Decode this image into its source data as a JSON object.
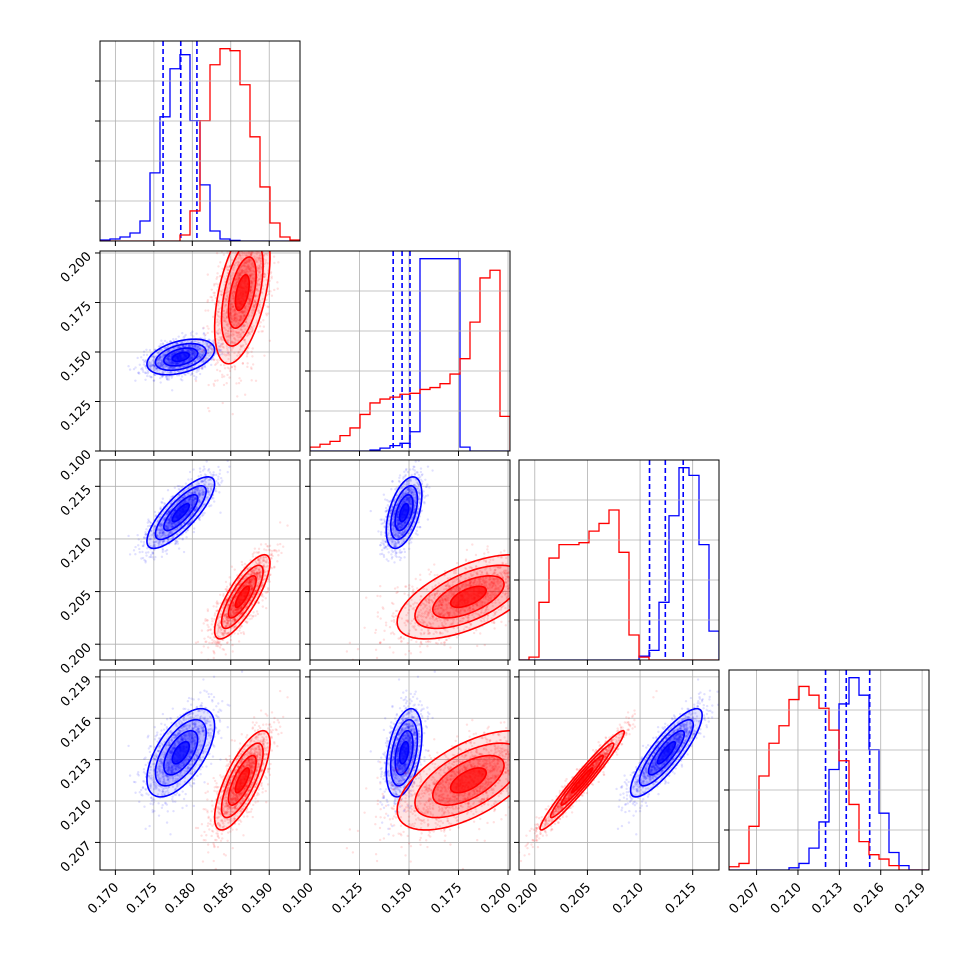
{
  "chart_data": {
    "type": "corner",
    "grid": true,
    "colors": {
      "blue": "#0000ff",
      "red": "#ff0000"
    },
    "params": [
      {
        "index": 0,
        "lim": [
          0.168,
          0.194
        ],
        "ticks": [
          0.17,
          0.175,
          0.18,
          0.185,
          0.19
        ],
        "tick_labels": [
          "0.170",
          "0.175",
          "0.180",
          "0.185",
          "0.190"
        ]
      },
      {
        "index": 1,
        "lim": [
          0.1,
          0.201
        ],
        "ticks": [
          0.1,
          0.125,
          0.15,
          0.175,
          0.2
        ],
        "tick_labels": [
          "0.100",
          "0.125",
          "0.150",
          "0.175",
          "0.200"
        ]
      },
      {
        "index": 2,
        "lim": [
          0.1985,
          0.2175
        ],
        "ticks": [
          0.2,
          0.205,
          0.21,
          0.215
        ],
        "tick_labels": [
          "0.200",
          "0.205",
          "0.210",
          "0.215"
        ]
      },
      {
        "index": 3,
        "lim": [
          0.205,
          0.2195
        ],
        "ticks": [
          0.207,
          0.21,
          0.213,
          0.216,
          0.219
        ],
        "tick_labels": [
          "0.207",
          "0.210",
          "0.213",
          "0.216",
          "0.219"
        ]
      }
    ],
    "series": [
      {
        "color": "blue",
        "mean": [
          0.1785,
          0.1475,
          0.2125,
          0.2135
        ],
        "sd": [
          0.0022,
          0.0045,
          0.0017,
          0.0016
        ],
        "corr": [
          [
            1,
            0.4,
            0.8,
            0.6
          ],
          [
            0.4,
            1,
            0.5,
            0.4
          ],
          [
            0.8,
            0.5,
            1,
            0.85
          ],
          [
            0.6,
            0.4,
            0.85,
            1
          ]
        ],
        "quantiles": [
          [
            0.1762,
            0.1785,
            0.1806
          ],
          [
            0.142,
            0.1465,
            0.1505
          ],
          [
            0.2109,
            0.2124,
            0.2141
          ],
          [
            0.212,
            0.2135,
            0.2152
          ]
        ],
        "hist": [
          {
            "edges": [
              0.168,
              0.194
            ],
            "counts": [
              0.5,
              1,
              2,
              4,
              10,
              34,
              62,
              86,
              93,
              60,
              28,
              5,
              1,
              0.3,
              0,
              0,
              0,
              0,
              0,
              0
            ]
          },
          {
            "edges": [
              0.1,
              0.201
            ],
            "counts": [
              0,
              0,
              0,
              0,
              0,
              0,
              0.5,
              1.5,
              2.8,
              4,
              10,
              100,
              100,
              100,
              100,
              2,
              0,
              0,
              0,
              0
            ]
          },
          {
            "edges": [
              0.1985,
              0.2175
            ],
            "counts": [
              0,
              0,
              0,
              0,
              0,
              0,
              0,
              0,
              0,
              0,
              0,
              0,
              2,
              5,
              30,
              75,
              100,
              96,
              60,
              15
            ]
          },
          {
            "edges": [
              0.205,
              0.2195
            ],
            "counts": [
              0,
              0,
              0,
              0,
              0,
              0,
              1,
              3,
              10,
              22,
              46,
              76,
              88,
              80,
              55,
              26,
              8,
              2,
              0,
              0
            ]
          }
        ]
      },
      {
        "color": "red",
        "mean": [
          0.1865,
          0.18,
          0.2045,
          0.2115
        ],
        "sd": [
          0.0018,
          0.018,
          0.002,
          0.0018
        ],
        "corr": [
          [
            1,
            0.5,
            0.8,
            0.75
          ],
          [
            0.5,
            1,
            0.6,
            0.6
          ],
          [
            0.8,
            0.6,
            1,
            0.97
          ],
          [
            0.75,
            0.6,
            0.97,
            1
          ]
        ],
        "quantiles": null,
        "hist": [
          {
            "edges": [
              0.168,
              0.194
            ],
            "counts": [
              0,
              0,
              0,
              0,
              0,
              0,
              0,
              0,
              3,
              15,
              60,
              88,
              96,
              95,
              78,
              52,
              27,
              9,
              2,
              0.5
            ]
          },
          {
            "edges": [
              0.1,
              0.201
            ],
            "counts": [
              2,
              3.5,
              5,
              8,
              12,
              19,
              25,
              27,
              28,
              29.5,
              30,
              32,
              33,
              35,
              40,
              48,
              67,
              90,
              94,
              18
            ]
          },
          {
            "edges": [
              0.1985,
              0.2175
            ],
            "counts": [
              0,
              1.5,
              30,
              53,
              60,
              60,
              61,
              67,
              71,
              78,
              56,
              13,
              1.5,
              0,
              0,
              0,
              0,
              0,
              0,
              0
            ]
          },
          {
            "edges": [
              0.205,
              0.2195
            ],
            "counts": [
              1.5,
              3,
              20,
              43,
              58,
              66,
              78,
              84,
              80,
              74,
              64,
              50,
              30,
              13,
              7,
              5,
              2,
              0,
              0,
              0
            ]
          }
        ]
      }
    ]
  }
}
